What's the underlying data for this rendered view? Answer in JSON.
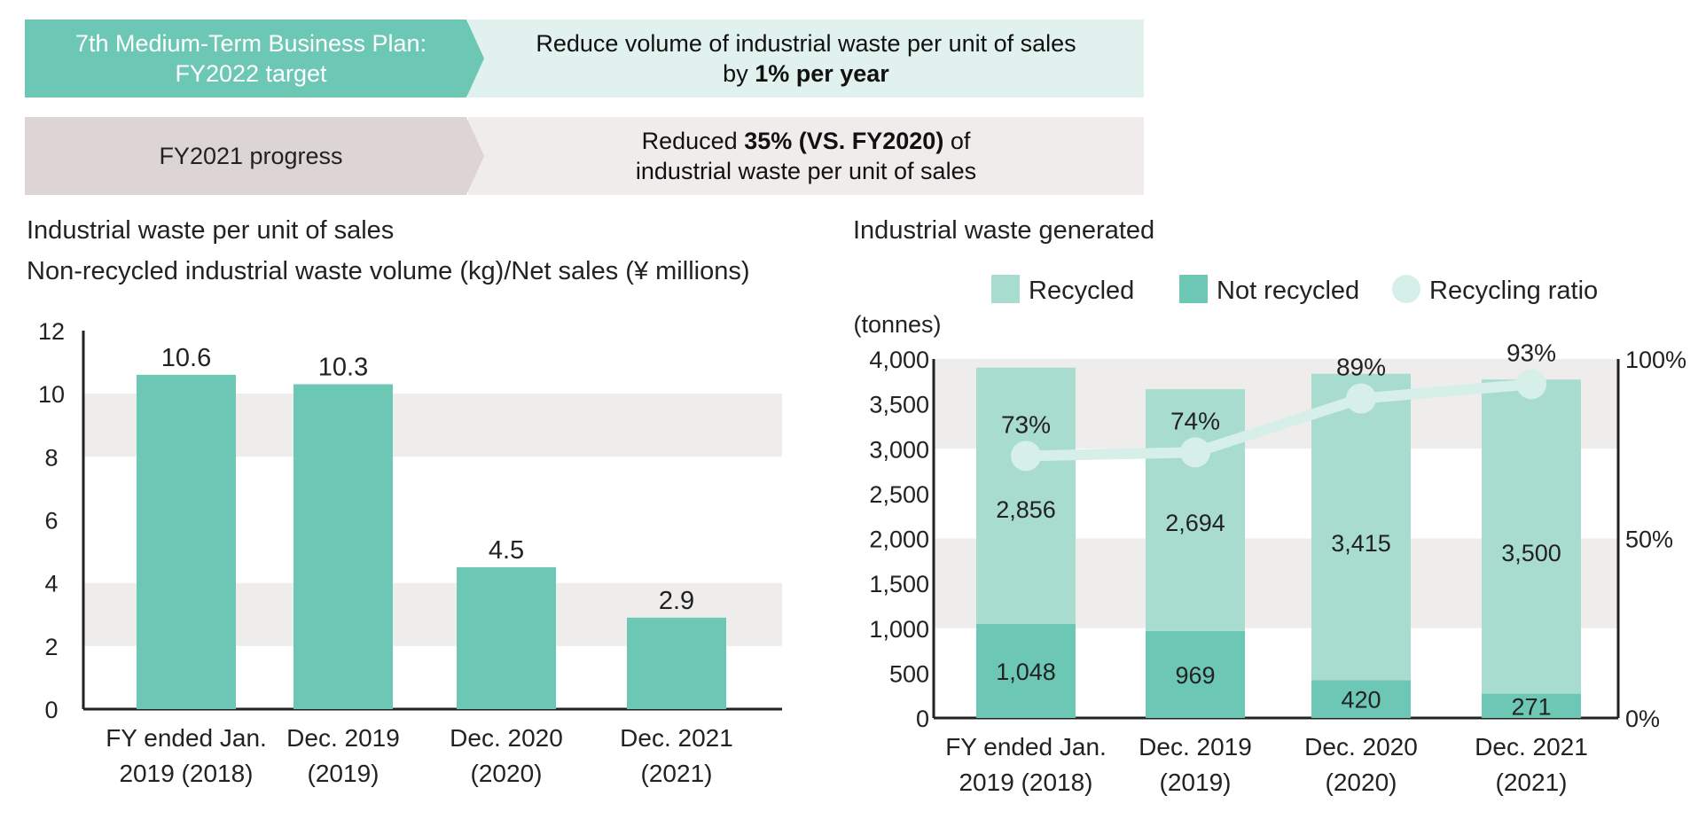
{
  "colors": {
    "teal": "#6cc7b4",
    "light_teal": "#a8dccf",
    "banner_target_left": "#6cc7b4",
    "banner_target_right": "#e1f2ee",
    "banner_progress_left": "#ddd5d4",
    "banner_progress_right": "#f0eceb",
    "band": "#efedec",
    "ratio_line": "#d7efe9"
  },
  "banner_target": {
    "left_line1": "7th Medium-Term Business Plan:",
    "left_line2": "FY2022 target",
    "right_line1": "Reduce volume of industrial waste per unit of sales",
    "right_line2_prefix": "by ",
    "right_line2_bold": "1% per year"
  },
  "banner_progress": {
    "left": "FY2021 progress",
    "right_line1_prefix": "Reduced ",
    "right_line1_bold": "35% (VS. FY2020)",
    "right_line1_suffix": " of",
    "right_line2": "industrial waste per unit of sales"
  },
  "chart_data": [
    {
      "type": "bar",
      "title": "Industrial waste per unit of sales",
      "subtitle": "Non-recycled industrial waste volume (kg)/Net sales (¥ millions)",
      "categories": [
        [
          "FY ended Jan.",
          "2019 (2018)"
        ],
        [
          "Dec. 2019",
          "(2019)"
        ],
        [
          "Dec. 2020",
          "(2020)"
        ],
        [
          "Dec. 2021",
          "(2021)"
        ]
      ],
      "values": [
        10.6,
        10.3,
        4.5,
        2.9
      ],
      "data_labels": [
        "10.6",
        "10.3",
        "4.5",
        "2.9"
      ],
      "ylim": [
        0,
        12
      ],
      "yticks": [
        "0",
        "2",
        "4",
        "6",
        "8",
        "10",
        "12"
      ],
      "grid": false
    },
    {
      "type": "bar",
      "stacked": true,
      "title": "Industrial waste generated",
      "y_unit": "(tonnes)",
      "categories": [
        [
          "FY ended Jan.",
          "2019 (2018)"
        ],
        [
          "Dec. 2019",
          "(2019)"
        ],
        [
          "Dec. 2020",
          "(2020)"
        ],
        [
          "Dec. 2021",
          "(2021)"
        ]
      ],
      "series": [
        {
          "name": "Not recycled",
          "values": [
            1048,
            969,
            420,
            271
          ],
          "labels": [
            "1,048",
            "969",
            "420",
            "271"
          ]
        },
        {
          "name": "Recycled",
          "values": [
            2856,
            2694,
            3415,
            3500
          ],
          "labels": [
            "2,856",
            "2,694",
            "3,415",
            "3,500"
          ]
        }
      ],
      "line_series": {
        "name": "Recycling ratio",
        "values": [
          73,
          74,
          89,
          93
        ],
        "labels": [
          "73%",
          "74%",
          "89%",
          "93%"
        ]
      },
      "legend": [
        "Recycled",
        "Not recycled",
        "Recycling ratio"
      ],
      "legend_position": "top",
      "ylim": [
        0,
        4000
      ],
      "yticks": [
        "0",
        "500",
        "1,000",
        "1,500",
        "2,000",
        "2,500",
        "3,000",
        "3,500",
        "4,000"
      ],
      "y2lim": [
        0,
        100
      ],
      "y2ticks": [
        "0%",
        "50%",
        "100%"
      ]
    }
  ]
}
